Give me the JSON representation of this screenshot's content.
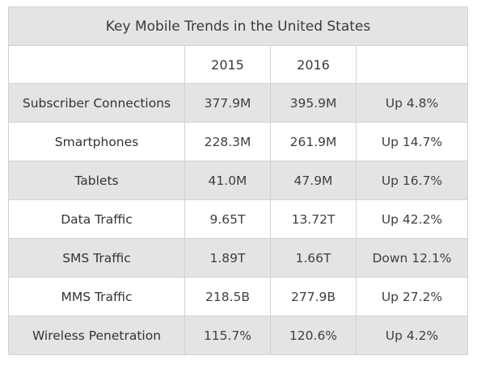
{
  "chart_data": {
    "type": "table",
    "title": "Key Mobile Trends in the United States",
    "columns": [
      "",
      "2015",
      "2016",
      ""
    ],
    "rows": [
      {
        "label": "Subscriber Connections",
        "y2015": "377.9M",
        "y2016": "395.9M",
        "change": "Up 4.8%"
      },
      {
        "label": "Smartphones",
        "y2015": "228.3M",
        "y2016": "261.9M",
        "change": "Up 14.7%"
      },
      {
        "label": "Tablets",
        "y2015": "41.0M",
        "y2016": "47.9M",
        "change": "Up 16.7%"
      },
      {
        "label": "Data Traffic",
        "y2015": "9.65T",
        "y2016": "13.72T",
        "change": "Up 42.2%"
      },
      {
        "label": "SMS Traffic",
        "y2015": "1.89T",
        "y2016": "1.66T",
        "change": "Down 12.1%"
      },
      {
        "label": "MMS Traffic",
        "y2015": "218.5B",
        "y2016": "277.9B",
        "change": "Up 27.2%"
      },
      {
        "label": "Wireless Penetration",
        "y2015": "115.7%",
        "y2016": "120.6%",
        "change": "Up 4.2%"
      }
    ]
  },
  "colors": {
    "shaded_row": "#e4e4e4",
    "plain_row": "#ffffff",
    "border": "#d2d2d2",
    "text": "#404040"
  }
}
